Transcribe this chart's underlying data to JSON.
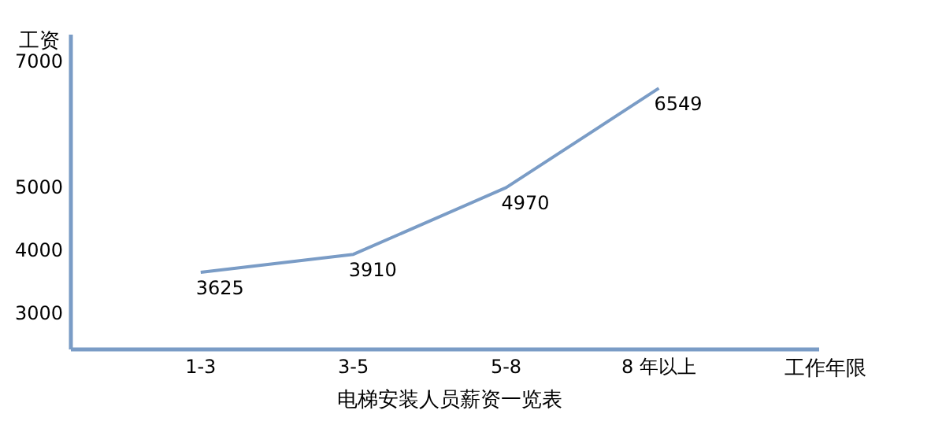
{
  "chart_data": {
    "type": "line",
    "title": "电梯安装人员薪资一览表",
    "xlabel": "工作年限",
    "ylabel": "工资",
    "categories": [
      "1-3",
      "3-5",
      "5-8",
      "8 年以上"
    ],
    "series": [
      {
        "color": "#7a9cc6",
        "values": [
          3625,
          3910,
          4970,
          6549
        ]
      }
    ],
    "ylim": [
      2400,
      7400
    ],
    "yticks": [
      3000,
      4000,
      5000,
      7000
    ],
    "data_labels": true,
    "grid": false,
    "marker": "none"
  }
}
